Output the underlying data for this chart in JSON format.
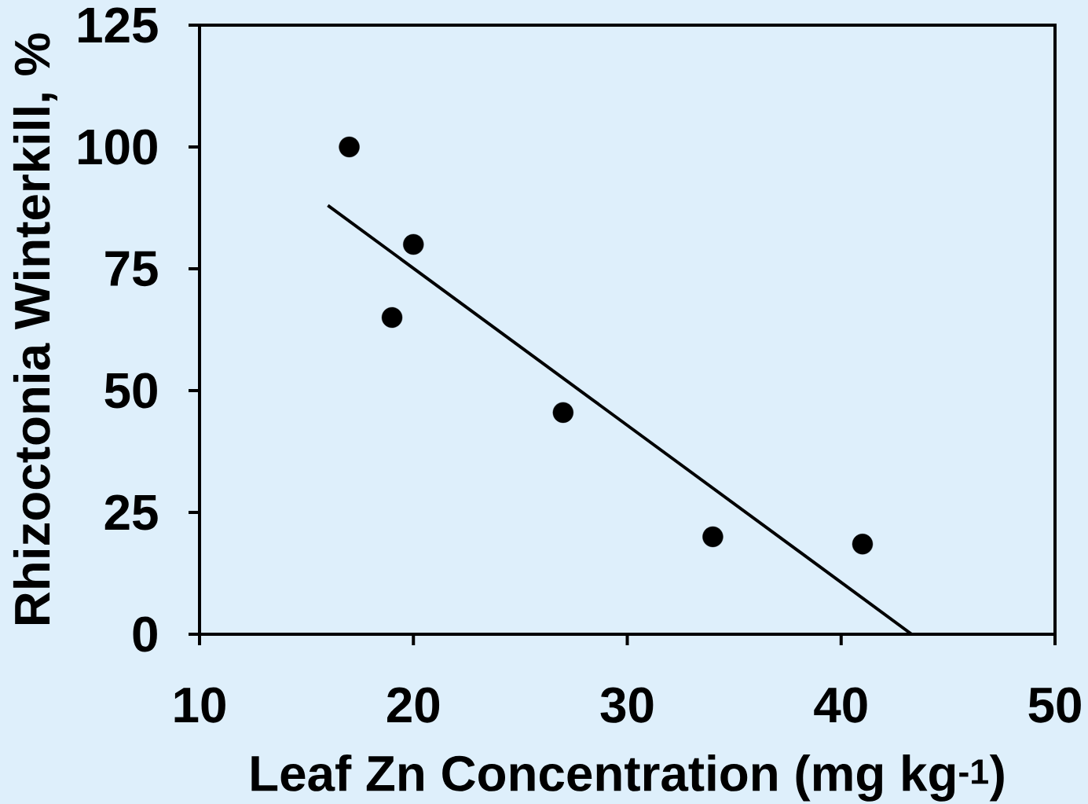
{
  "chart_data": {
    "type": "scatter",
    "xlabel": "Leaf Zn Concentration (mg kg$^{-1}$)",
    "ylabel": "Rhizoctonia Winterkill, %",
    "xlim": [
      10,
      50
    ],
    "ylim": [
      0,
      125
    ],
    "xticks": [
      10,
      20,
      30,
      40,
      50
    ],
    "yticks": [
      0,
      25,
      50,
      75,
      100,
      125
    ],
    "series": [
      {
        "marker": "circle",
        "color": "#000000",
        "x": [
          17,
          20,
          19,
          27,
          34,
          41
        ],
        "values": [
          100,
          80,
          65,
          45.5,
          20,
          18.5
        ]
      },
      {
        "type": "line",
        "color": "#000000",
        "x": [
          16,
          43.3
        ],
        "values": [
          88,
          0
        ]
      }
    ]
  }
}
